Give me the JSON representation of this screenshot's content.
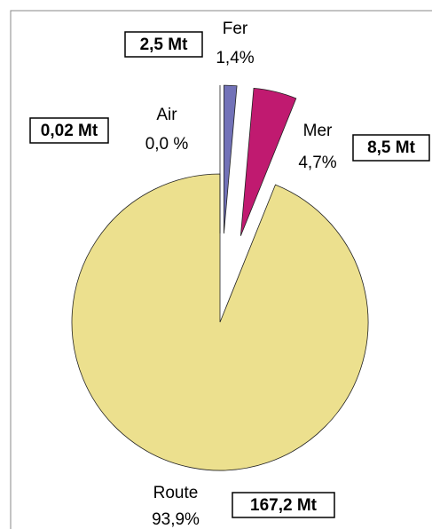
{
  "chart_data": {
    "type": "pie",
    "categories": [
      "Fer",
      "Mer",
      "Route",
      "Air"
    ],
    "values": [
      1.4,
      4.7,
      93.9,
      0.0
    ],
    "value_labels": [
      "1,4%",
      "4,7%",
      "93,9%",
      "0,0 %"
    ],
    "annotations": [
      "2,5 Mt",
      "8,5 Mt",
      "167,2 Mt",
      "0,02 Mt"
    ],
    "colors": [
      "#7272b8",
      "#c01a70",
      "#ece08e",
      "#9fc4e8"
    ]
  }
}
